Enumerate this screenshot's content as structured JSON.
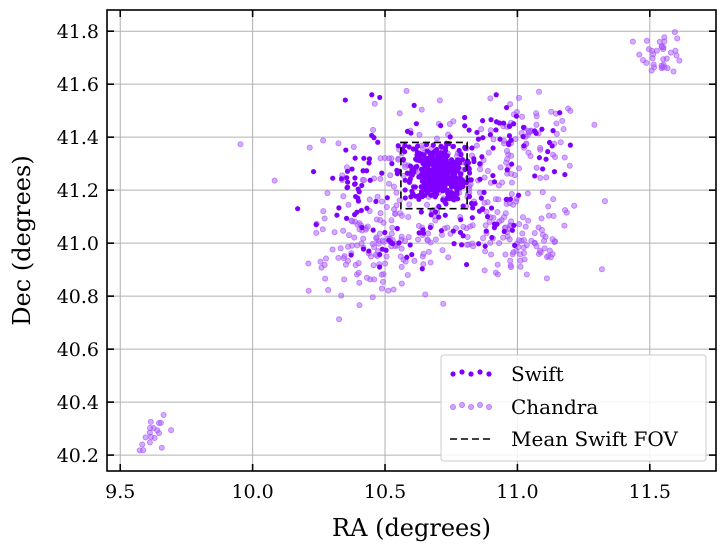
{
  "chart_data": {
    "type": "scatter",
    "title": "",
    "xlabel": "RA (degrees)",
    "ylabel": "Dec (degrees)",
    "xlim": [
      9.45,
      11.75
    ],
    "ylim": [
      40.14,
      41.88
    ],
    "xticks": [
      9.5,
      10.0,
      10.5,
      11.0,
      11.5
    ],
    "xtick_labels": [
      "9.5",
      "10.0",
      "10.5",
      "11.0",
      "11.5"
    ],
    "yticks": [
      40.2,
      40.4,
      40.6,
      40.8,
      41.0,
      41.2,
      41.4,
      41.6,
      41.8
    ],
    "ytick_labels": [
      "40.2",
      "40.4",
      "40.6",
      "40.8",
      "41.0",
      "41.2",
      "41.4",
      "41.6",
      "41.8"
    ],
    "grid": true,
    "legend_position": "bottom-right",
    "series": [
      {
        "name": "Swift",
        "label": "Swift",
        "color": "#7f00ff",
        "alpha": 1.0,
        "clusters": [
          {
            "ra": 10.7,
            "dec": 41.26,
            "sd_ra": 0.05,
            "sd_dec": 0.05,
            "n": 320
          },
          {
            "ra": 10.7,
            "dec": 41.26,
            "sd_ra": 0.12,
            "sd_dec": 0.1,
            "n": 120
          },
          {
            "ra": 10.38,
            "dec": 41.22,
            "sd_ra": 0.04,
            "sd_dec": 0.06,
            "n": 30
          },
          {
            "ra": 10.95,
            "dec": 41.42,
            "sd_ra": 0.08,
            "sd_dec": 0.06,
            "n": 25
          },
          {
            "ra": 10.85,
            "dec": 41.05,
            "sd_ra": 0.08,
            "sd_dec": 0.05,
            "n": 25
          },
          {
            "ra": 10.55,
            "dec": 40.98,
            "sd_ra": 0.08,
            "sd_dec": 0.05,
            "n": 20
          },
          {
            "ra": 11.1,
            "dec": 41.35,
            "sd_ra": 0.07,
            "sd_dec": 0.06,
            "n": 12
          }
        ],
        "points": [
          {
            "ra": 10.17,
            "dec": 41.13
          },
          {
            "ra": 10.23,
            "dec": 41.27
          },
          {
            "ra": 10.35,
            "dec": 41.54
          },
          {
            "ra": 10.45,
            "dec": 41.56
          },
          {
            "ra": 10.48,
            "dec": 41.55
          },
          {
            "ra": 10.61,
            "dec": 41.52
          },
          {
            "ra": 10.92,
            "dec": 41.56
          },
          {
            "ra": 11.14,
            "dec": 41.27
          },
          {
            "ra": 10.24,
            "dec": 41.07
          },
          {
            "ra": 11.2,
            "dec": 41.37
          }
        ]
      },
      {
        "name": "Chandra",
        "label": "Chandra",
        "color": "#b266ff",
        "alpha": 0.55,
        "clusters": [
          {
            "ra": 10.72,
            "dec": 41.2,
            "sd_ra": 0.22,
            "sd_dec": 0.15,
            "n": 250
          },
          {
            "ra": 10.45,
            "dec": 40.95,
            "sd_ra": 0.12,
            "sd_dec": 0.07,
            "n": 90
          },
          {
            "ra": 11.02,
            "dec": 41.0,
            "sd_ra": 0.1,
            "sd_dec": 0.08,
            "n": 70
          },
          {
            "ra": 11.05,
            "dec": 41.4,
            "sd_ra": 0.1,
            "sd_dec": 0.07,
            "n": 45
          },
          {
            "ra": 11.55,
            "dec": 41.72,
            "sd_ra": 0.04,
            "sd_dec": 0.04,
            "n": 35
          },
          {
            "ra": 9.64,
            "dec": 40.28,
            "sd_ra": 0.04,
            "sd_dec": 0.03,
            "n": 18
          }
        ],
        "points": []
      }
    ],
    "shapes": [
      {
        "type": "rectangle",
        "label": "Mean Swift FOV",
        "style": "dashed",
        "color": "#000000",
        "ra_range": [
          10.56,
          10.81
        ],
        "dec_range": [
          41.13,
          41.38
        ]
      }
    ]
  }
}
